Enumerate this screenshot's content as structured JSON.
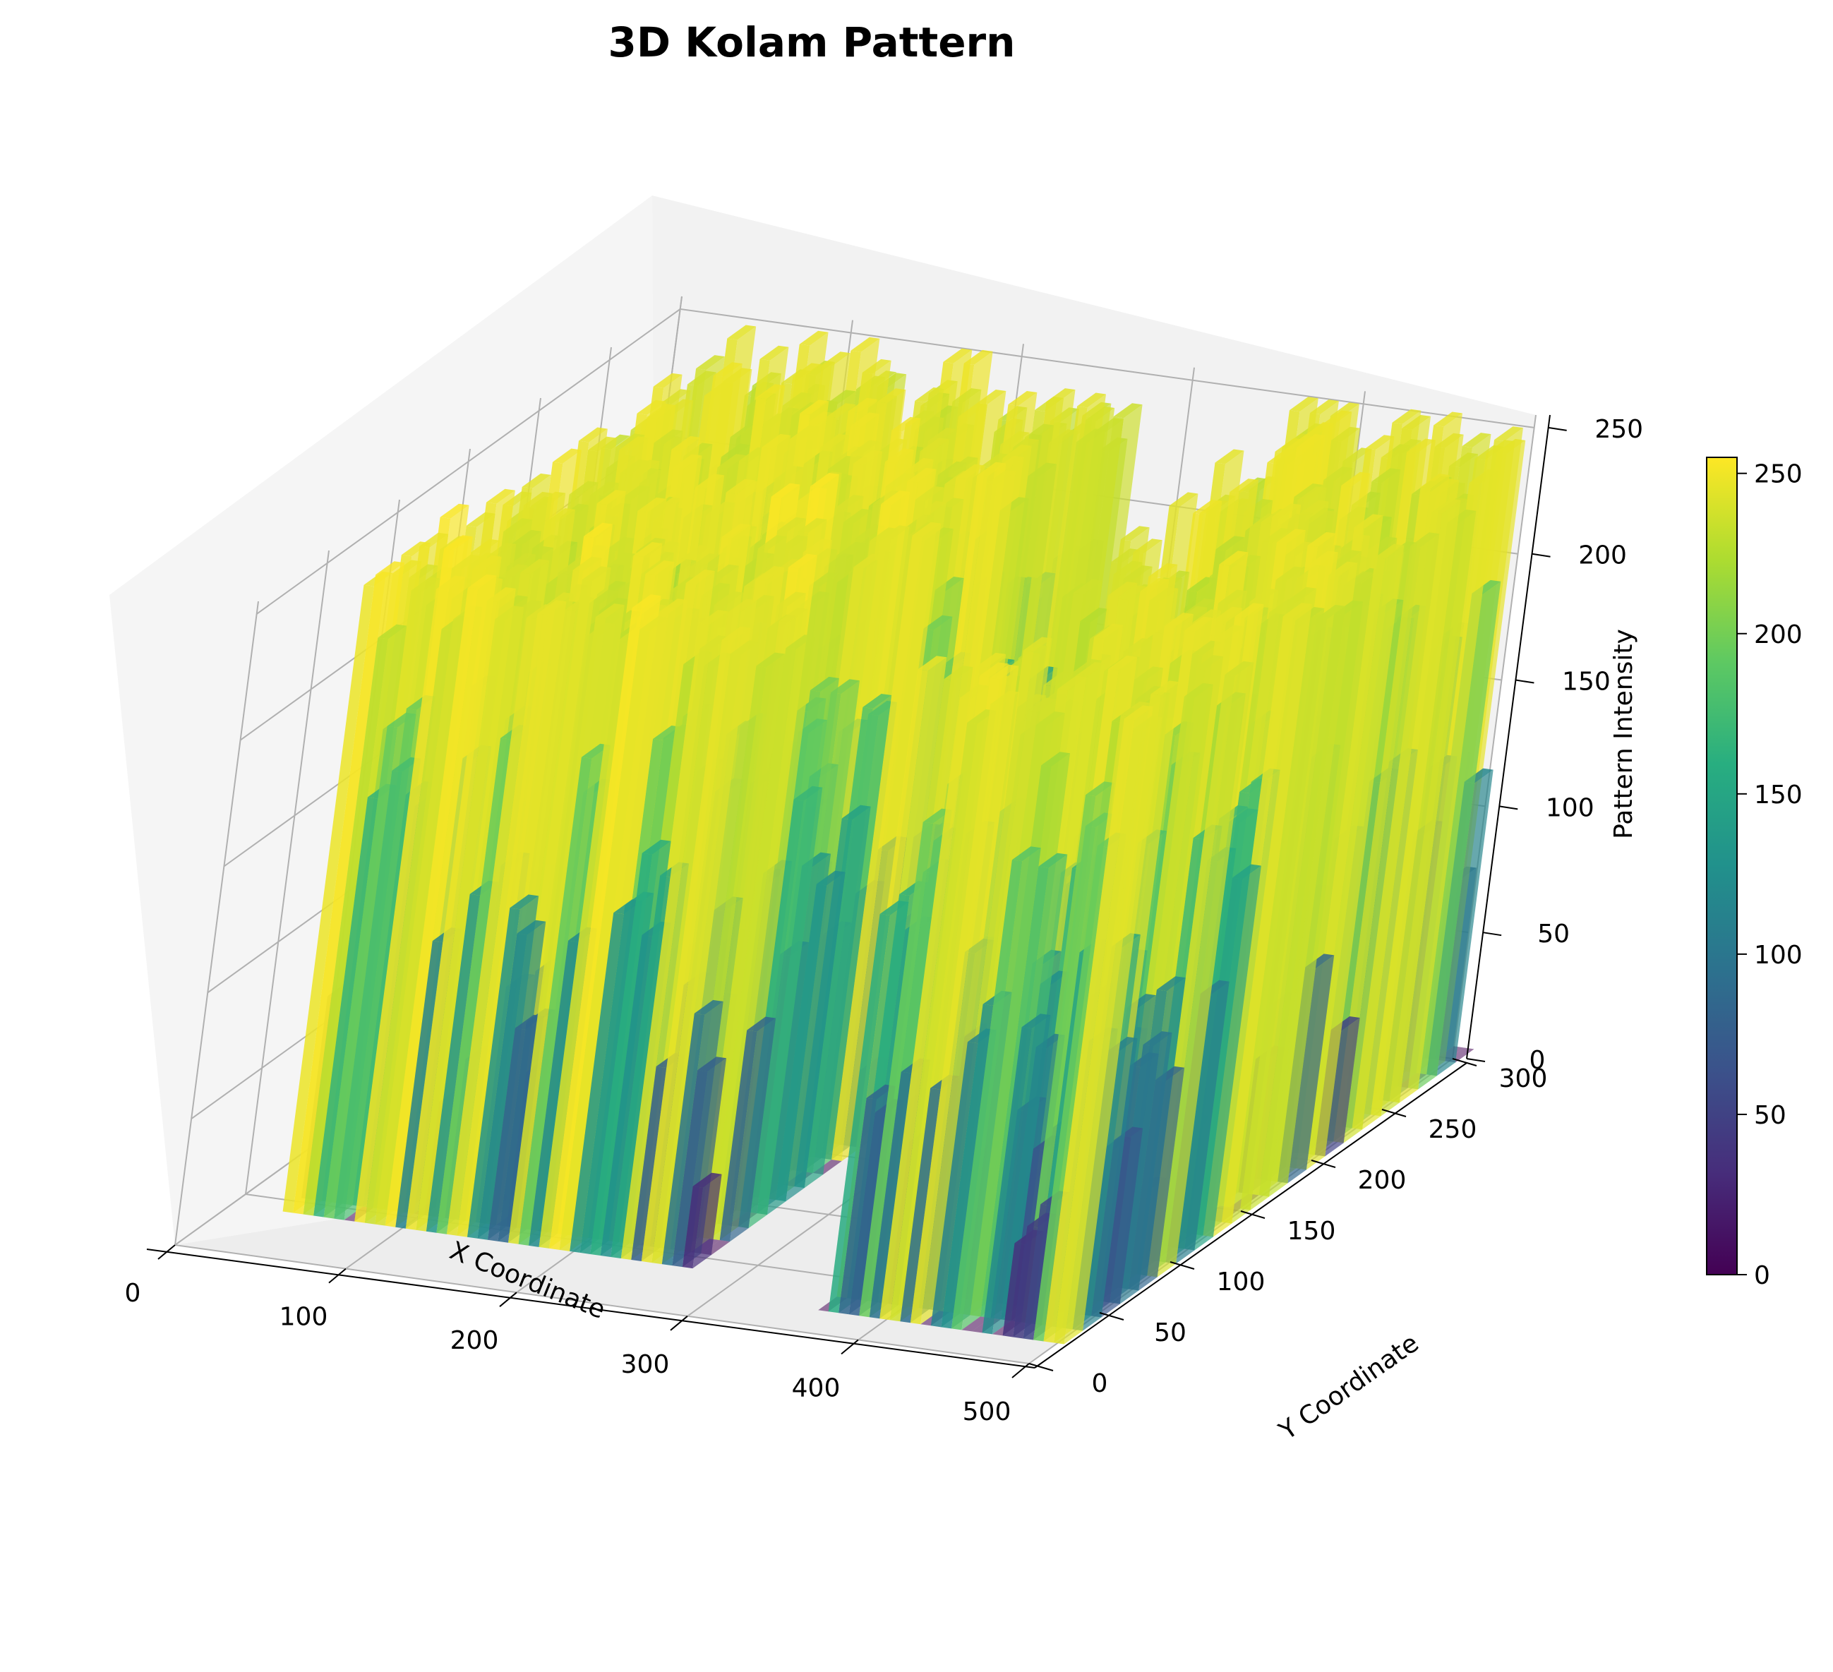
{
  "chart_data": {
    "type": "bar3d",
    "title": "3D Kolam Pattern",
    "xlabel": "X Coordinate",
    "ylabel": "Y Coordinate",
    "zlabel": "Pattern Intensity",
    "xlim": [
      0,
      500
    ],
    "ylim": [
      0,
      300
    ],
    "zlim": [
      0,
      255
    ],
    "x_ticks": [
      "0",
      "100",
      "200",
      "300",
      "400",
      "500"
    ],
    "y_ticks": [
      "0",
      "50",
      "100",
      "150",
      "200",
      "250",
      "300"
    ],
    "z_ticks": [
      "0",
      "50",
      "100",
      "150",
      "200",
      "250"
    ],
    "grid": true,
    "colormap": "viridis",
    "colorbar": {
      "ticks": [
        "0",
        "50",
        "100",
        "150",
        "200",
        "250"
      ],
      "range": [
        0,
        255
      ]
    },
    "regions": [
      {
        "name": "left block",
        "x_range": [
          30,
          270
        ],
        "y_range": [
          40,
          300
        ],
        "max_intensity": 255,
        "top_intensity": 250
      },
      {
        "name": "right block",
        "x_range": [
          360,
          500
        ],
        "y_range": [
          20,
          300
        ],
        "max_intensity": 230,
        "top_intensity": 250
      }
    ]
  }
}
